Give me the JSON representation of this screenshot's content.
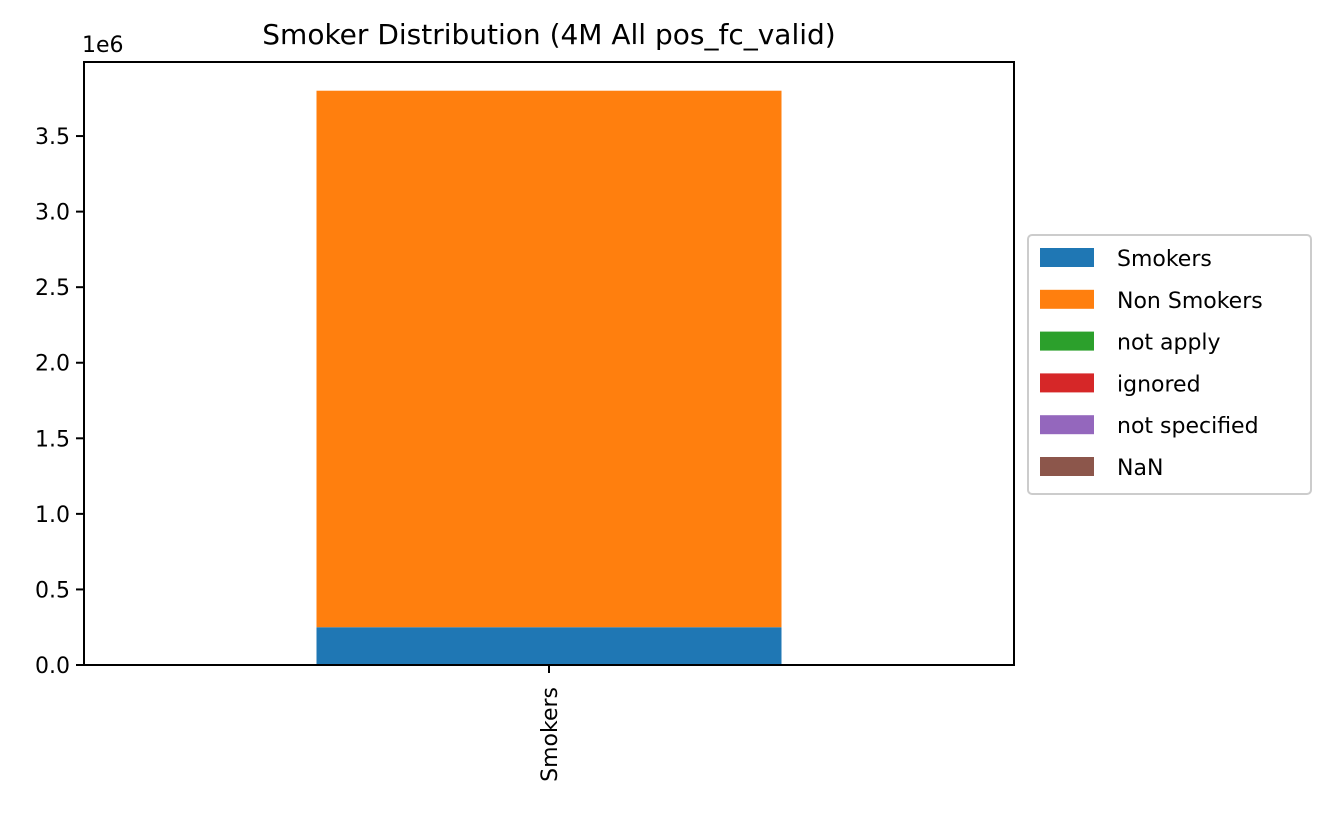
{
  "chart_data": {
    "type": "bar",
    "stacked": true,
    "title": "Smoker Distribution (4M All pos_fc_valid)",
    "xlabel": "",
    "ylabel": "",
    "categories": [
      "Smokers"
    ],
    "ylim": [
      0,
      3.99
    ],
    "y_scale_label": "1e6",
    "yticks": [
      0.0,
      0.5,
      1.0,
      1.5,
      2.0,
      2.5,
      3.0,
      3.5
    ],
    "yticklabels": [
      "0.0",
      "0.5",
      "1.0",
      "1.5",
      "2.0",
      "2.5",
      "3.0",
      "3.5"
    ],
    "series": [
      {
        "name": "Smokers",
        "values": [
          0.25
        ],
        "color": "#1f77b4"
      },
      {
        "name": "Non Smokers",
        "values": [
          3.55
        ],
        "color": "#ff7f0e"
      },
      {
        "name": "not apply",
        "values": [
          0
        ],
        "color": "#2ca02c"
      },
      {
        "name": "ignored",
        "values": [
          0
        ],
        "color": "#d62728"
      },
      {
        "name": "not specified",
        "values": [
          0
        ],
        "color": "#9467bd"
      },
      {
        "name": "NaN",
        "values": [
          0
        ],
        "color": "#8c564b"
      }
    ],
    "legend_position": "center-right outside",
    "grid": false
  }
}
